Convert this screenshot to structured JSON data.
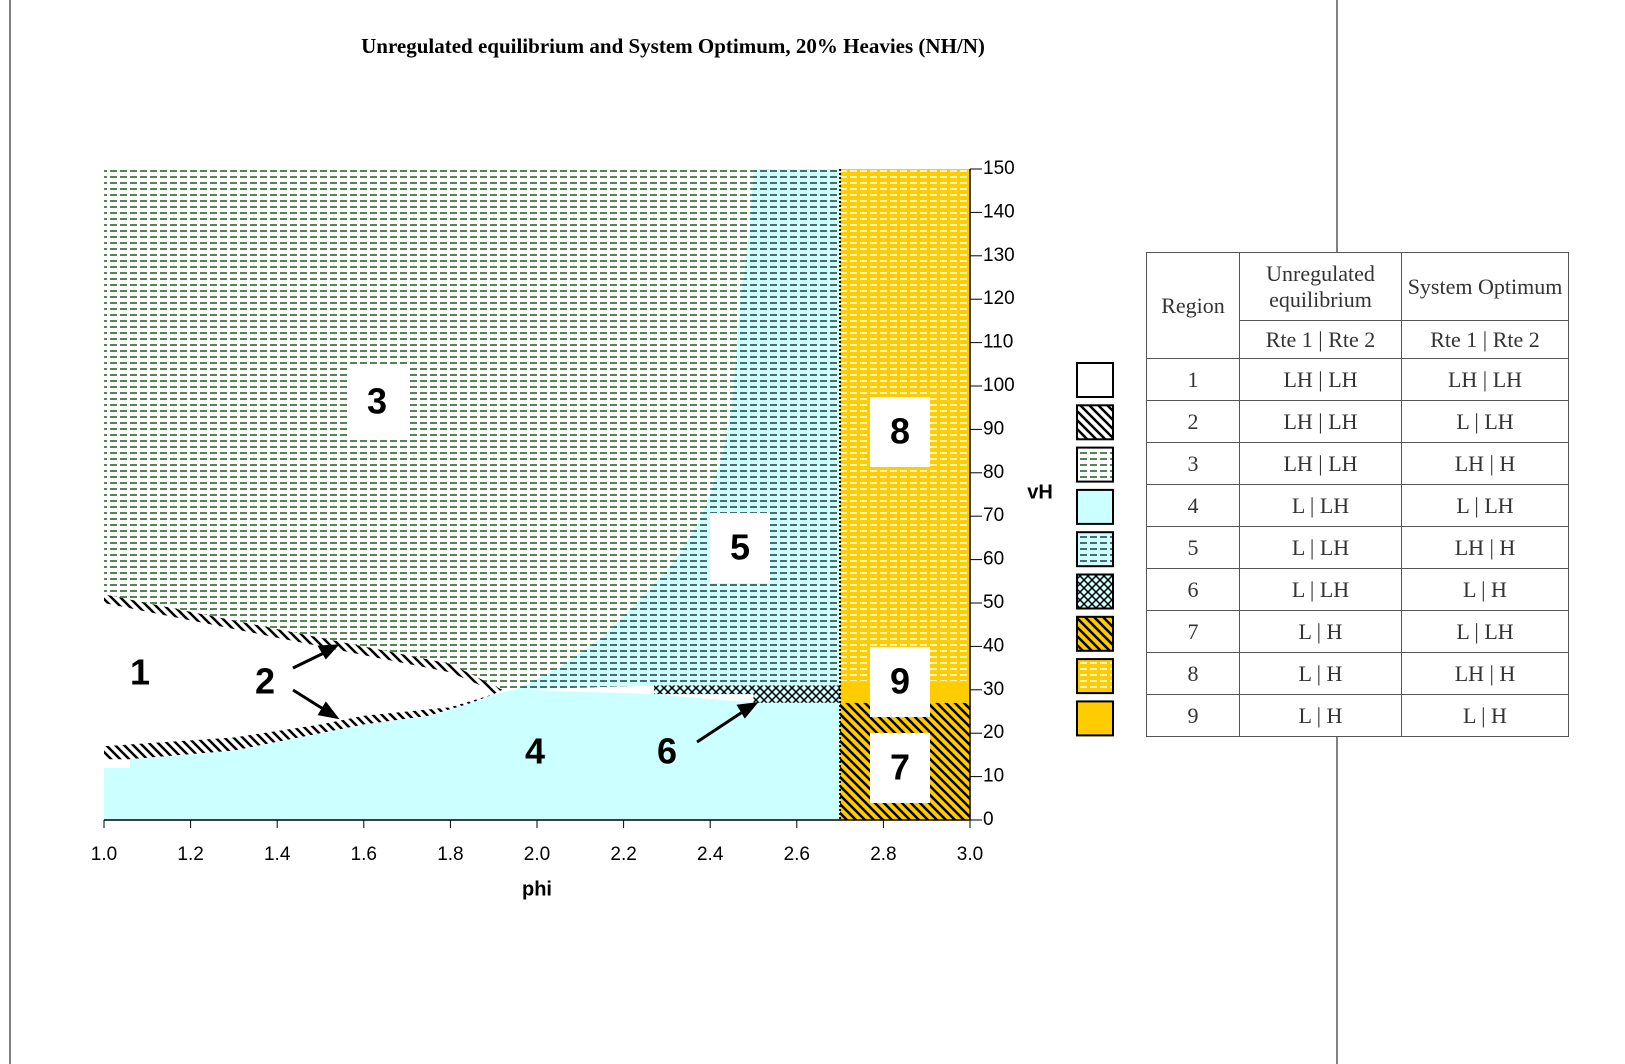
{
  "chart_data": {
    "type": "region",
    "title": "Unregulated equilibrium and System Optimum, 20%  Heavies (NH/N)",
    "x_label": "phi",
    "y_label": "vH",
    "xlim": [
      1,
      3
    ],
    "xticks": [
      {
        "value": 1,
        "label": "1.0"
      },
      1.2,
      1.4,
      1.6,
      1.8,
      {
        "value": 2,
        "label": "2.0"
      },
      2.2,
      2.4,
      2.6,
      2.8,
      {
        "value": 3,
        "label": "3.0"
      }
    ],
    "ylim": [
      0,
      150
    ],
    "yticks": [
      0,
      10,
      20,
      30,
      40,
      50,
      60,
      70,
      80,
      90,
      100,
      110,
      120,
      130,
      140,
      150
    ],
    "regions": [
      {
        "name": "1",
        "color": "#ffffff",
        "pattern": "none",
        "pattern_color": "#000000",
        "x": [
          1.0,
          1.1,
          1.2,
          1.3,
          1.4,
          1.5,
          1.6,
          1.7,
          1.8,
          1.87,
          1.9,
          1.8,
          1.6,
          1.5,
          1.3,
          1.0
        ],
        "y": [
          50,
          48,
          46,
          44,
          42,
          40,
          38,
          36,
          34,
          31,
          29,
          26,
          24,
          22,
          19,
          17
        ]
      },
      {
        "name": "2",
        "color": "#ffffff",
        "pattern": "diagonal",
        "pattern_color": "#000000",
        "x": [
          1.0,
          1.1,
          1.2,
          1.3,
          1.4,
          1.5,
          1.6,
          1.7,
          1.8,
          1.88,
          1.92,
          1.9,
          1.87,
          1.8,
          1.7,
          1.6,
          1.5,
          1.4,
          1.3,
          1.2,
          1.1,
          1.0,
          null,
          1.0,
          1.3,
          1.5,
          1.6,
          1.8,
          1.9,
          1.85,
          1.75,
          1.6,
          1.5,
          1.3,
          1.06,
          1.0
        ],
        "y": [
          52,
          50,
          48,
          46,
          44,
          42,
          40,
          38,
          36,
          32,
          30,
          29,
          31,
          34,
          36,
          38,
          40,
          42,
          44,
          46,
          48,
          50,
          null,
          17,
          19,
          22,
          24,
          26,
          29,
          27,
          24,
          22,
          20,
          16,
          14,
          14
        ]
      },
      {
        "name": "3",
        "color": "#ffffff",
        "pattern": "dashes",
        "pattern_color": "#1f5a1f",
        "x": [
          1.0,
          1.1,
          1.2,
          1.3,
          1.4,
          1.5,
          1.6,
          1.7,
          1.8,
          1.88,
          1.92,
          1.95,
          2.05,
          2.15,
          2.25,
          2.32,
          2.37,
          2.4,
          2.43,
          2.45,
          2.46,
          2.47,
          2.49,
          2.5,
          1.0
        ],
        "y": [
          52,
          50,
          48,
          46,
          44,
          42,
          40,
          38,
          36,
          32,
          30,
          30,
          35,
          42,
          52,
          60,
          68,
          75,
          85,
          95,
          108,
          120,
          135,
          150,
          150
        ]
      },
      {
        "name": "4",
        "color": "#ccffff",
        "pattern": "none",
        "pattern_color": "#000000",
        "x": [
          1.0,
          2.7,
          2.7,
          2.5,
          2.27,
          1.95,
          1.9,
          1.85,
          1.75,
          1.6,
          1.5,
          1.3,
          1.06,
          1.06,
          1.0
        ],
        "y": [
          0,
          0,
          27,
          27,
          29,
          30,
          29,
          27,
          24,
          22,
          20,
          16,
          14,
          12,
          12
        ]
      },
      {
        "name": "5",
        "color": "#ccffff",
        "pattern": "dashes",
        "pattern_color": "#1f3a3a",
        "x": [
          1.95,
          2.27,
          2.7,
          2.7,
          2.5,
          2.49,
          2.47,
          2.46,
          2.45,
          2.43,
          2.4,
          2.37,
          2.32,
          2.25,
          2.15,
          2.05
        ],
        "y": [
          30,
          31,
          31,
          150,
          150,
          135,
          120,
          108,
          95,
          85,
          75,
          68,
          60,
          52,
          42,
          35
        ]
      },
      {
        "name": "6",
        "color": "#ccffff",
        "pattern": "crosshatch",
        "pattern_color": "#000000",
        "x": [
          2.27,
          2.5,
          2.5,
          2.7,
          2.7,
          2.27
        ],
        "y": [
          29,
          29,
          27,
          27,
          31,
          31
        ]
      },
      {
        "name": "7",
        "color": "#ffcc00",
        "pattern": "diagonal",
        "pattern_color": "#000000",
        "x": [
          2.7,
          3.0,
          3.0,
          2.7
        ],
        "y": [
          0,
          0,
          27,
          27
        ]
      },
      {
        "name": "8",
        "color": "#ffcc00",
        "pattern": "dashes",
        "pattern_color": "#ffffff",
        "x": [
          2.7,
          3.0,
          3.0,
          2.7
        ],
        "y": [
          32,
          32,
          150,
          150
        ]
      },
      {
        "name": "9",
        "color": "#ffcc00",
        "pattern": "none",
        "pattern_color": "#000000",
        "x": [
          2.7,
          3.0,
          3.0,
          2.7
        ],
        "y": [
          27,
          27,
          32,
          32
        ]
      }
    ]
  },
  "table": {
    "header": [
      "Region",
      "Unregulated equilibrium",
      "System Optimum"
    ],
    "subheader": [
      "Rte 1 | Rte 2",
      "Rte 1 | Rte 2"
    ],
    "rows": [
      [
        "1",
        "LH | LH",
        "LH | LH"
      ],
      [
        "2",
        "LH | LH",
        "L | LH"
      ],
      [
        "3",
        "LH | LH",
        "LH | H"
      ],
      [
        "4",
        "L | LH",
        "L | LH"
      ],
      [
        "5",
        "L | LH",
        "LH | H"
      ],
      [
        "6",
        "L | LH",
        "L | H"
      ],
      [
        "7",
        "L | H",
        "L | LH"
      ],
      [
        "8",
        "L | H",
        "LH | H"
      ],
      [
        "9",
        "L | H",
        "L | H"
      ]
    ]
  }
}
